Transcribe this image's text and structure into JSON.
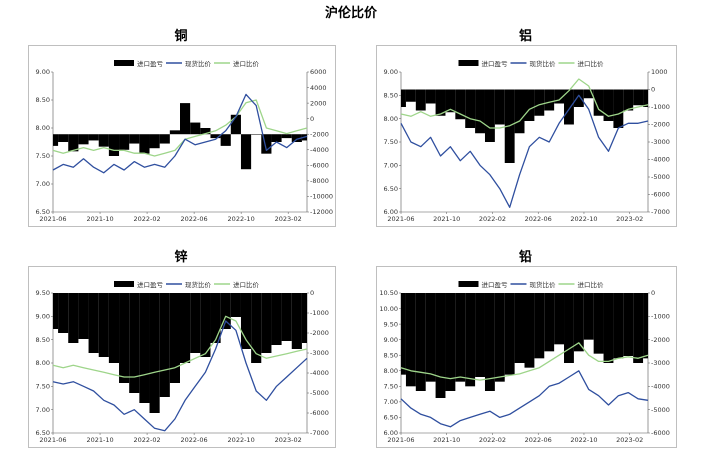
{
  "main_title": "沪伦比价",
  "colors": {
    "bar": "#000000",
    "spot": "#2f4f9f",
    "import": "#9ed58a"
  },
  "chart_data": [
    {
      "type": "line",
      "title": "铜",
      "legend": [
        "进口盈亏",
        "现货比价",
        "进口比价"
      ],
      "legend_position": "top-center",
      "x_ticks": [
        "2021-06",
        "2021-10",
        "2022-02",
        "2022-06",
        "2022-10",
        "2023-02"
      ],
      "yleft_ticks": [
        "9.00",
        "8.50",
        "8.00",
        "7.50",
        "7.00",
        "6.50"
      ],
      "yright_ticks": [
        "6000",
        "4000",
        "2000",
        "0",
        "-2000",
        "-4000",
        "-6000",
        "-8000",
        "-10000",
        "-12000"
      ],
      "ylim_left": [
        6.5,
        9.0
      ],
      "ylim_right": [
        -12000,
        6000
      ],
      "bar_base": -2000,
      "series": [
        {
          "name": "进口盈亏",
          "axis": "right",
          "kind": "bar",
          "x": [
            0,
            0.04,
            0.08,
            0.12,
            0.16,
            0.2,
            0.24,
            0.28,
            0.32,
            0.36,
            0.4,
            0.44,
            0.48,
            0.52,
            0.56,
            0.6,
            0.64,
            0.68,
            0.72,
            0.76,
            0.8,
            0.84,
            0.88,
            0.92,
            0.96,
            1.0
          ],
          "values": [
            -3500,
            -3000,
            -4200,
            -3300,
            -2800,
            -3600,
            -4800,
            -4000,
            -3200,
            -4500,
            -3800,
            -3200,
            -1500,
            2000,
            -500,
            -1200,
            -2500,
            -3500,
            500,
            -6500,
            -2000,
            -4500,
            -3000,
            -2500,
            -3000,
            -2800
          ]
        },
        {
          "name": "现货比价",
          "axis": "left",
          "kind": "line",
          "x": [
            0,
            0.04,
            0.08,
            0.12,
            0.16,
            0.2,
            0.24,
            0.28,
            0.32,
            0.36,
            0.4,
            0.44,
            0.48,
            0.52,
            0.56,
            0.6,
            0.64,
            0.68,
            0.72,
            0.76,
            0.8,
            0.84,
            0.88,
            0.92,
            0.96,
            1.0
          ],
          "values": [
            7.25,
            7.35,
            7.3,
            7.45,
            7.3,
            7.2,
            7.35,
            7.25,
            7.4,
            7.3,
            7.35,
            7.3,
            7.5,
            7.8,
            7.7,
            7.75,
            7.8,
            7.95,
            8.2,
            8.6,
            8.4,
            7.6,
            7.75,
            7.65,
            7.8,
            7.85
          ]
        },
        {
          "name": "进口比价",
          "axis": "left",
          "kind": "line",
          "x": [
            0,
            0.04,
            0.08,
            0.12,
            0.16,
            0.2,
            0.24,
            0.28,
            0.32,
            0.36,
            0.4,
            0.44,
            0.48,
            0.52,
            0.56,
            0.6,
            0.64,
            0.68,
            0.72,
            0.76,
            0.8,
            0.84,
            0.88,
            0.92,
            0.96,
            1.0
          ],
          "values": [
            7.6,
            7.55,
            7.6,
            7.65,
            7.6,
            7.65,
            7.6,
            7.6,
            7.55,
            7.55,
            7.5,
            7.55,
            7.6,
            7.8,
            7.85,
            7.9,
            7.95,
            8.05,
            8.2,
            8.45,
            8.5,
            8.0,
            7.95,
            7.9,
            7.95,
            8.0
          ]
        }
      ]
    },
    {
      "type": "line",
      "title": "铝",
      "legend": [
        "进口盈亏",
        "现货比价",
        "进口比价"
      ],
      "legend_position": "top-center",
      "x_ticks": [
        "2021-06",
        "2021-10",
        "2022-02",
        "2022-06",
        "2022-10",
        "2023-02"
      ],
      "yleft_ticks": [
        "9.00",
        "8.50",
        "8.00",
        "7.50",
        "7.00",
        "6.50",
        "6.00"
      ],
      "yright_ticks": [
        "1000",
        "0",
        "-1000",
        "-2000",
        "-3000",
        "-4000",
        "-5000",
        "-6000",
        "-7000"
      ],
      "ylim_left": [
        6.0,
        9.0
      ],
      "ylim_right": [
        -7000,
        1000
      ],
      "bar_base": 0,
      "series": [
        {
          "name": "进口盈亏",
          "axis": "right",
          "kind": "bar",
          "x": [
            0,
            0.04,
            0.08,
            0.12,
            0.16,
            0.2,
            0.24,
            0.28,
            0.32,
            0.36,
            0.4,
            0.44,
            0.48,
            0.52,
            0.56,
            0.6,
            0.64,
            0.68,
            0.72,
            0.76,
            0.8,
            0.84,
            0.88,
            0.92,
            0.96,
            1.0
          ],
          "values": [
            -1000,
            -700,
            -1200,
            -800,
            -1500,
            -1300,
            -1700,
            -2200,
            -2500,
            -3000,
            -2000,
            -4200,
            -2500,
            -1800,
            -1500,
            -1200,
            -800,
            -2000,
            -1000,
            -500,
            -1500,
            -1800,
            -2200,
            -1200,
            -900,
            -1000
          ]
        },
        {
          "name": "现货比价",
          "axis": "left",
          "kind": "line",
          "x": [
            0,
            0.04,
            0.08,
            0.12,
            0.16,
            0.2,
            0.24,
            0.28,
            0.32,
            0.36,
            0.4,
            0.44,
            0.48,
            0.52,
            0.56,
            0.6,
            0.64,
            0.68,
            0.72,
            0.76,
            0.8,
            0.84,
            0.88,
            0.92,
            0.96,
            1.0
          ],
          "values": [
            7.9,
            7.5,
            7.4,
            7.6,
            7.2,
            7.4,
            7.1,
            7.3,
            7.0,
            6.8,
            6.5,
            6.1,
            6.8,
            7.4,
            7.6,
            7.5,
            7.9,
            8.2,
            8.5,
            8.2,
            7.6,
            7.3,
            7.8,
            7.9,
            7.9,
            7.95
          ]
        },
        {
          "name": "进口比价",
          "axis": "left",
          "kind": "line",
          "x": [
            0,
            0.04,
            0.08,
            0.12,
            0.16,
            0.2,
            0.24,
            0.28,
            0.32,
            0.36,
            0.4,
            0.44,
            0.48,
            0.52,
            0.56,
            0.6,
            0.64,
            0.68,
            0.72,
            0.76,
            0.8,
            0.84,
            0.88,
            0.92,
            0.96,
            1.0
          ],
          "values": [
            8.1,
            8.05,
            8.15,
            8.05,
            8.1,
            8.2,
            8.1,
            8.0,
            7.95,
            7.8,
            7.8,
            7.85,
            7.95,
            8.2,
            8.3,
            8.35,
            8.4,
            8.6,
            8.85,
            8.7,
            8.2,
            8.05,
            8.1,
            8.2,
            8.25,
            8.3
          ]
        }
      ]
    },
    {
      "type": "line",
      "title": "锌",
      "legend": [
        "进口盈亏",
        "现货比价",
        "进口比价"
      ],
      "legend_position": "top-center",
      "x_ticks": [
        "2021-06",
        "2021-10",
        "2022-02",
        "2022-06",
        "2022-10",
        "2023-02"
      ],
      "yleft_ticks": [
        "9.50",
        "9.00",
        "8.50",
        "8.00",
        "7.50",
        "7.00",
        "6.50"
      ],
      "yright_ticks": [
        "0",
        "-1000",
        "-2000",
        "-3000",
        "-4000",
        "-5000",
        "-6000",
        "-7000"
      ],
      "ylim_left": [
        6.5,
        9.5
      ],
      "ylim_right": [
        -7000,
        0
      ],
      "bar_base": 0,
      "series": [
        {
          "name": "进口盈亏",
          "axis": "right",
          "kind": "bar",
          "x": [
            0,
            0.04,
            0.08,
            0.12,
            0.16,
            0.2,
            0.24,
            0.28,
            0.32,
            0.36,
            0.4,
            0.44,
            0.48,
            0.52,
            0.56,
            0.6,
            0.64,
            0.68,
            0.72,
            0.76,
            0.8,
            0.84,
            0.88,
            0.92,
            0.96,
            1.0
          ],
          "values": [
            -1800,
            -2000,
            -2500,
            -2300,
            -3000,
            -3200,
            -3500,
            -4500,
            -5000,
            -5500,
            -6000,
            -5200,
            -4500,
            -3500,
            -3000,
            -3200,
            -2500,
            -1800,
            -1200,
            -2800,
            -3500,
            -3000,
            -2600,
            -2400,
            -2800,
            -2500
          ]
        },
        {
          "name": "现货比价",
          "axis": "left",
          "kind": "line",
          "x": [
            0,
            0.04,
            0.08,
            0.12,
            0.16,
            0.2,
            0.24,
            0.28,
            0.32,
            0.36,
            0.4,
            0.44,
            0.48,
            0.52,
            0.56,
            0.6,
            0.64,
            0.68,
            0.72,
            0.76,
            0.8,
            0.84,
            0.88,
            0.92,
            0.96,
            1.0
          ],
          "values": [
            7.6,
            7.55,
            7.6,
            7.5,
            7.4,
            7.2,
            7.1,
            6.9,
            7.0,
            6.8,
            6.6,
            6.55,
            6.8,
            7.2,
            7.5,
            7.8,
            8.3,
            8.9,
            8.7,
            8.0,
            7.4,
            7.2,
            7.5,
            7.7,
            7.9,
            8.1
          ]
        },
        {
          "name": "进口比价",
          "axis": "left",
          "kind": "line",
          "x": [
            0,
            0.04,
            0.08,
            0.12,
            0.16,
            0.2,
            0.24,
            0.28,
            0.32,
            0.36,
            0.4,
            0.44,
            0.48,
            0.52,
            0.56,
            0.6,
            0.64,
            0.68,
            0.72,
            0.76,
            0.8,
            0.84,
            0.88,
            0.92,
            0.96,
            1.0
          ],
          "values": [
            7.95,
            7.9,
            7.95,
            7.9,
            7.85,
            7.8,
            7.75,
            7.7,
            7.7,
            7.75,
            7.8,
            7.85,
            7.9,
            8.0,
            8.1,
            8.2,
            8.5,
            9.0,
            8.9,
            8.5,
            8.2,
            8.1,
            8.15,
            8.2,
            8.25,
            8.3
          ]
        }
      ]
    },
    {
      "type": "line",
      "title": "铅",
      "legend": [
        "进口盈亏",
        "现货比价",
        "进口比价"
      ],
      "legend_position": "top-center",
      "x_ticks": [
        "2021-06",
        "2021-10",
        "2022-02",
        "2022-06",
        "2022-10",
        "2023-02"
      ],
      "yleft_ticks": [
        "10.50",
        "10.00",
        "9.50",
        "9.00",
        "8.50",
        "8.00",
        "7.50",
        "7.00",
        "6.50",
        "6.00"
      ],
      "yright_ticks": [
        "0",
        "-1000",
        "-2000",
        "-3000",
        "-4000",
        "-5000",
        "-6000"
      ],
      "ylim_left": [
        6.0,
        10.5
      ],
      "ylim_right": [
        -6000,
        0
      ],
      "bar_base": 0,
      "series": [
        {
          "name": "进口盈亏",
          "axis": "right",
          "kind": "bar",
          "x": [
            0,
            0.04,
            0.08,
            0.12,
            0.16,
            0.2,
            0.24,
            0.28,
            0.32,
            0.36,
            0.4,
            0.44,
            0.48,
            0.52,
            0.56,
            0.6,
            0.64,
            0.68,
            0.72,
            0.76,
            0.8,
            0.84,
            0.88,
            0.92,
            0.96,
            1.0
          ],
          "values": [
            -3500,
            -4000,
            -4200,
            -3800,
            -4500,
            -4200,
            -3800,
            -4000,
            -3600,
            -4200,
            -3800,
            -3500,
            -3000,
            -3200,
            -2800,
            -2500,
            -2200,
            -3000,
            -2500,
            -2000,
            -2600,
            -3000,
            -2800,
            -2700,
            -3000,
            -2800
          ]
        },
        {
          "name": "现货比价",
          "axis": "left",
          "kind": "line",
          "x": [
            0,
            0.04,
            0.08,
            0.12,
            0.16,
            0.2,
            0.24,
            0.28,
            0.32,
            0.36,
            0.4,
            0.44,
            0.48,
            0.52,
            0.56,
            0.6,
            0.64,
            0.68,
            0.72,
            0.76,
            0.8,
            0.84,
            0.88,
            0.92,
            0.96,
            1.0
          ],
          "values": [
            7.1,
            6.8,
            6.6,
            6.5,
            6.3,
            6.2,
            6.4,
            6.5,
            6.6,
            6.7,
            6.5,
            6.6,
            6.8,
            7.0,
            7.2,
            7.5,
            7.6,
            7.8,
            8.0,
            7.4,
            7.2,
            6.9,
            7.2,
            7.3,
            7.1,
            7.05
          ]
        },
        {
          "name": "进口比价",
          "axis": "left",
          "kind": "line",
          "x": [
            0,
            0.04,
            0.08,
            0.12,
            0.16,
            0.2,
            0.24,
            0.28,
            0.32,
            0.36,
            0.4,
            0.44,
            0.48,
            0.52,
            0.56,
            0.6,
            0.64,
            0.68,
            0.72,
            0.76,
            0.8,
            0.84,
            0.88,
            0.92,
            0.96,
            1.0
          ],
          "values": [
            8.1,
            8.0,
            7.95,
            7.9,
            7.8,
            7.75,
            7.8,
            7.75,
            7.7,
            7.75,
            7.8,
            7.85,
            7.9,
            8.0,
            8.1,
            8.3,
            8.5,
            8.7,
            8.9,
            8.5,
            8.3,
            8.3,
            8.4,
            8.45,
            8.4,
            8.5
          ]
        }
      ]
    }
  ]
}
